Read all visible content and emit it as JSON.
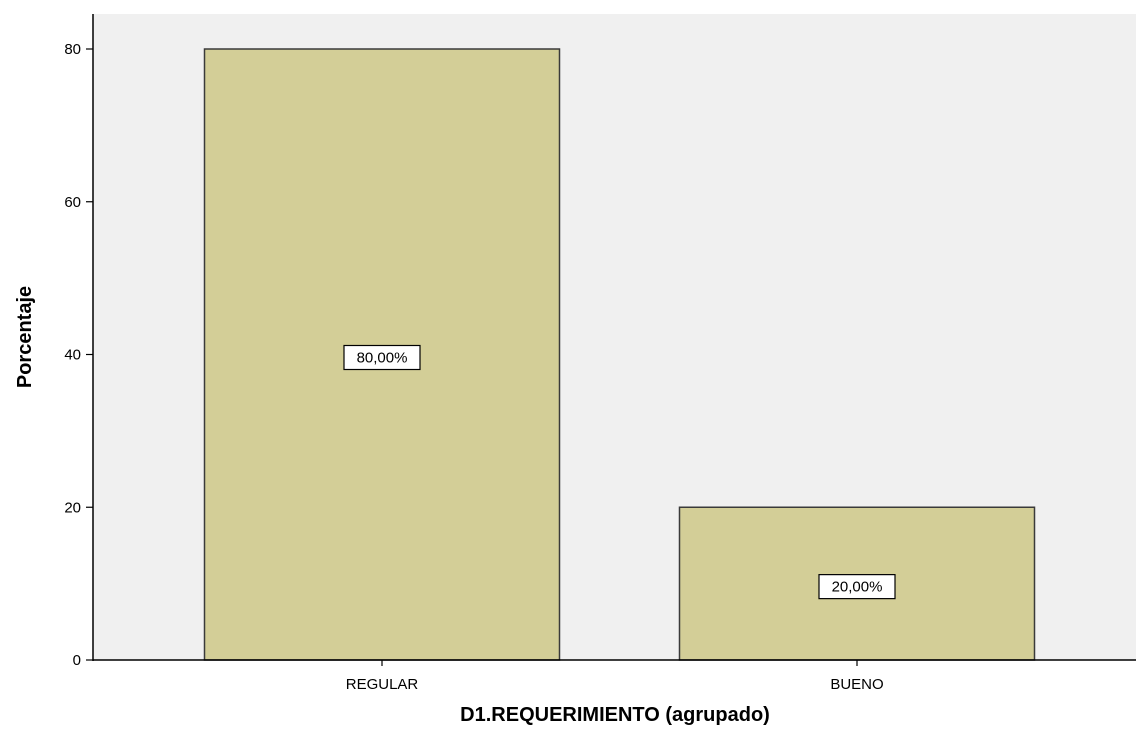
{
  "chart_data": {
    "type": "bar",
    "title": "",
    "xlabel": "D1.REQUERIMIENTO (agrupado)",
    "ylabel": "Porcentaje",
    "categories": [
      "REGULAR",
      "BUENO"
    ],
    "values": [
      80,
      20
    ],
    "data_labels": [
      "80,00%",
      "20,00%"
    ],
    "ylim": [
      0,
      80
    ],
    "yticks": [
      "0",
      "20",
      "40",
      "60",
      "80"
    ],
    "grid": false,
    "legend": "none"
  },
  "colors": {
    "bar_fill": "#D3CE97",
    "bar_stroke": "#3A3A3A",
    "plot_background": "#F0F0F0",
    "axis": "#000000",
    "label_box_fill": "#FFFFFF"
  }
}
